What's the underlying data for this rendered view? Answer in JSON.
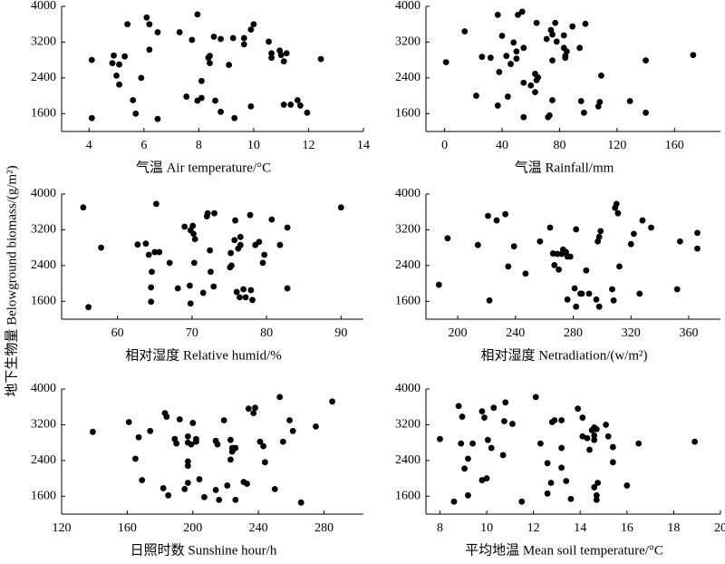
{
  "ylabel": "地下生物量 Belowground biomass/(g/m²)",
  "chart_data": [
    {
      "type": "scatter",
      "xlabel": "气温 Air temperature/°C",
      "color": "#000000",
      "xlim": [
        3,
        14
      ],
      "ylim": [
        1200,
        4000
      ],
      "xticks": [
        4,
        6,
        8,
        10,
        12,
        14
      ],
      "yticks": [
        1600,
        2400,
        3200,
        4000
      ],
      "x": [
        4.1,
        4.1,
        5.4,
        4.9,
        4.85,
        5.1,
        5.3,
        5.0,
        5.1,
        5.6,
        5.7,
        5.9,
        6.1,
        6.2,
        6.2,
        6.5,
        6.5,
        7.3,
        7.75,
        7.95,
        7.55,
        8.1,
        8.1,
        7.95,
        8.35,
        8.4,
        8.4,
        8.55,
        8.8,
        8.6,
        8.8,
        9.1,
        9.25,
        9.3,
        9.65,
        9.65,
        9.9,
        10,
        9.9,
        10.55,
        10.65,
        10.65,
        10.95,
        11,
        11.1,
        11.2,
        11.1,
        11.35,
        11.6,
        11.7,
        11.95,
        12.45
      ],
      "values": [
        2800,
        1500,
        3600,
        2900,
        2730,
        2700,
        2880,
        2450,
        2250,
        1900,
        1600,
        2400,
        3750,
        3600,
        3030,
        3420,
        1480,
        3420,
        3250,
        3820,
        1980,
        2330,
        1950,
        1890,
        2850,
        2730,
        2890,
        3320,
        3270,
        1890,
        1640,
        2690,
        3290,
        1500,
        3290,
        3150,
        3480,
        3600,
        1760,
        3210,
        2950,
        2850,
        3010,
        2910,
        2770,
        2950,
        1800,
        1800,
        1900,
        1780,
        1620,
        2820
      ]
    },
    {
      "type": "scatter",
      "xlabel": "气温 Rainfall/mm",
      "color": "#000000",
      "xlim": [
        -13,
        192
      ],
      "ylim": [
        1200,
        4000
      ],
      "xticks": [
        0,
        40,
        80,
        120,
        160
      ],
      "yticks": [
        1600,
        2400,
        3200,
        4000
      ],
      "x": [
        1,
        14,
        22,
        26,
        32,
        37,
        38,
        40,
        43,
        44,
        37,
        46,
        48,
        50,
        51,
        54,
        50,
        55,
        55,
        55,
        60,
        63,
        63,
        64,
        64,
        65,
        71,
        74,
        75,
        75,
        73,
        72,
        78,
        75,
        77,
        83,
        83,
        84,
        84,
        85,
        89,
        98,
        94,
        95,
        97,
        107,
        108,
        109,
        129,
        140,
        140,
        173
      ],
      "values": [
        2750,
        3440,
        2000,
        2870,
        2850,
        3810,
        2530,
        3340,
        2890,
        1980,
        1780,
        2710,
        3190,
        2830,
        3810,
        3880,
        2990,
        3070,
        2290,
        1520,
        2230,
        2490,
        2080,
        3630,
        2350,
        2410,
        3270,
        3470,
        3370,
        1900,
        1560,
        1520,
        3210,
        2790,
        3630,
        3350,
        3070,
        2890,
        2850,
        2990,
        3550,
        3610,
        3070,
        1880,
        1620,
        1760,
        1860,
        2450,
        1880,
        2790,
        1620,
        2910
      ]
    },
    {
      "type": "scatter",
      "xlabel": "相对湿度 Relative humid/%",
      "color": "#000000",
      "xlim": [
        52.5,
        93
      ],
      "ylim": [
        1200,
        4000
      ],
      "xticks": [
        60,
        70,
        80,
        90
      ],
      "yticks": [
        1600,
        2400,
        3200,
        4000
      ],
      "x": [
        55.4,
        56.1,
        57.8,
        62.7,
        63.8,
        64.2,
        65,
        65.6,
        65.2,
        67,
        64.6,
        64.5,
        64.5,
        68.1,
        69,
        69.8,
        70.1,
        70.2,
        70.4,
        70.3,
        69.8,
        69.7,
        72,
        72.1,
        73,
        72.4,
        72.5,
        72.9,
        71.5,
        75.2,
        75.1,
        75.3,
        75.7,
        75.8,
        76.2,
        76.5,
        76.5,
        76,
        76.4,
        76.9,
        77.2,
        77.9,
        78.1,
        77.8,
        78.5,
        79,
        79.5,
        79.7,
        80.7,
        81.8,
        82.8,
        82.8,
        90
      ],
      "values": [
        3700,
        1470,
        2800,
        2870,
        2890,
        2640,
        2700,
        2700,
        3780,
        2460,
        2260,
        1910,
        1590,
        1890,
        3270,
        3190,
        3290,
        3110,
        2990,
        2460,
        1550,
        1950,
        3500,
        3570,
        3570,
        2740,
        2260,
        1930,
        1790,
        2680,
        2360,
        2400,
        2970,
        3410,
        2780,
        3040,
        2860,
        1810,
        1690,
        1870,
        1690,
        1850,
        1630,
        3530,
        2860,
        2930,
        2460,
        2640,
        3430,
        2860,
        3250,
        1890,
        3700
      ]
    },
    {
      "type": "scatter",
      "xlabel": "相对湿度 Netradiation/(w/m²)",
      "color": "#000000",
      "xlim": [
        178,
        382
      ],
      "ylim": [
        1200,
        4000
      ],
      "xticks": [
        200,
        240,
        280,
        320,
        360
      ],
      "yticks": [
        1600,
        2400,
        3200,
        4000
      ],
      "x": [
        187,
        193,
        214,
        221,
        222,
        227,
        233,
        235,
        239,
        247,
        257,
        264,
        266,
        267,
        269,
        270,
        273,
        272,
        275,
        276,
        278,
        276,
        281,
        282,
        282,
        285,
        286,
        289,
        291,
        297,
        298,
        296,
        298,
        299,
        307,
        309,
        310,
        311,
        312,
        308,
        320,
        322,
        326,
        328,
        334,
        352,
        354,
        366,
        366
      ],
      "values": [
        1970,
        3010,
        2860,
        3510,
        1620,
        3410,
        3550,
        2380,
        2830,
        2220,
        2940,
        3250,
        2670,
        2410,
        2660,
        2310,
        2760,
        2660,
        2700,
        2600,
        2600,
        1640,
        1890,
        1480,
        3210,
        1770,
        1770,
        2290,
        1770,
        2940,
        1480,
        1640,
        3040,
        3170,
        1870,
        3690,
        3780,
        3570,
        2380,
        1620,
        2880,
        3110,
        1770,
        3410,
        3250,
        1870,
        2940,
        3130,
        2780
      ]
    },
    {
      "type": "scatter",
      "xlabel": "日照时数 Sunshine hour/h",
      "color": "#000000",
      "xlim": [
        120,
        304
      ],
      "ylim": [
        1200,
        4000
      ],
      "xticks": [
        120,
        160,
        200,
        240,
        280
      ],
      "yticks": [
        1600,
        2400,
        3200,
        4000
      ],
      "x": [
        139,
        161,
        165,
        169,
        167,
        174,
        182,
        183,
        184,
        185,
        189,
        190,
        192,
        195,
        197,
        197,
        197,
        197,
        197,
        199,
        200,
        202,
        202,
        204,
        207,
        214,
        215,
        214,
        216,
        219,
        221,
        223,
        223,
        224,
        224,
        226,
        226,
        231,
        233,
        234,
        238,
        237,
        243,
        241,
        244,
        250,
        253,
        255,
        259,
        261,
        266,
        275,
        285
      ],
      "values": [
        3040,
        3260,
        2440,
        1960,
        2920,
        3060,
        1780,
        3460,
        3380,
        1620,
        2880,
        2780,
        3320,
        1760,
        1900,
        2280,
        2380,
        2800,
        2940,
        2760,
        3240,
        2880,
        2820,
        1980,
        1580,
        1740,
        2760,
        2840,
        1520,
        3300,
        1840,
        2420,
        2860,
        2600,
        2680,
        2680,
        1520,
        1920,
        1880,
        3560,
        3580,
        3460,
        2720,
        2820,
        2360,
        1760,
        3820,
        2820,
        3300,
        3060,
        1460,
        3160,
        3720
      ]
    },
    {
      "type": "scatter",
      "xlabel": "平均地温 Mean soil temperature/°C",
      "color": "#000000",
      "xlim": [
        7.4,
        20
      ],
      "ylim": [
        1200,
        4000
      ],
      "xticks": [
        8,
        10,
        12,
        14,
        16,
        18,
        20
      ],
      "yticks": [
        1600,
        2400,
        3200,
        4000
      ],
      "x": [
        8,
        8.6,
        8.8,
        8.95,
        8.9,
        9.05,
        9.2,
        9.2,
        9.4,
        9.8,
        9.8,
        9.9,
        10,
        10.05,
        10.2,
        10.3,
        10.75,
        10.8,
        10.7,
        11.1,
        11.5,
        12.1,
        12.3,
        12.6,
        12.6,
        12.8,
        12.9,
        12.75,
        13.2,
        13.2,
        13.2,
        13.4,
        13.6,
        13.9,
        14.1,
        14.1,
        14.3,
        14.4,
        14.5,
        14.6,
        14.6,
        14.6,
        14.7,
        14.7,
        14.7,
        14.6,
        14.75,
        15.1,
        15.2,
        15.4,
        15.4,
        16,
        16.5,
        18.9
      ],
      "values": [
        2880,
        1480,
        3620,
        3380,
        2780,
        2220,
        2440,
        1620,
        2780,
        1960,
        3500,
        3360,
        2000,
        2860,
        2680,
        3580,
        3280,
        3700,
        2520,
        3220,
        1480,
        3820,
        2780,
        1660,
        2340,
        3260,
        3300,
        1900,
        2680,
        2240,
        3300,
        1940,
        1540,
        3560,
        3360,
        2940,
        2900,
        2640,
        3080,
        3140,
        2960,
        2860,
        3100,
        1620,
        1520,
        1800,
        1900,
        3200,
        2940,
        2700,
        2360,
        1840,
        2780,
        2820
      ]
    }
  ]
}
